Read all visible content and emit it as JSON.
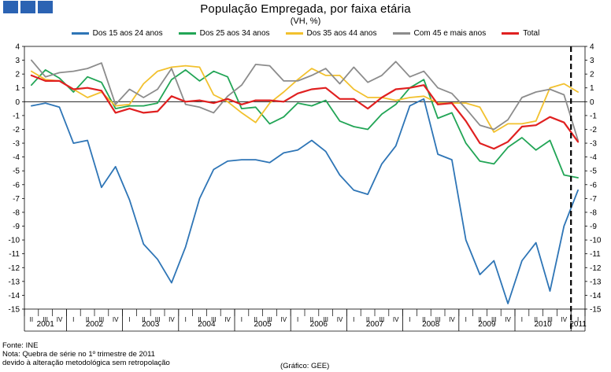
{
  "header": {
    "title": "População Empregada, por faixa etária",
    "subtitle": "(VH, %)"
  },
  "brand": {
    "color": "#2b63b3"
  },
  "chart_data": {
    "type": "line",
    "title": "População Empregada, por faixa etária",
    "ylabel": "(VH, %)",
    "ylim": [
      -15,
      4
    ],
    "yticks": [
      4,
      3,
      2,
      1,
      0,
      -1,
      -2,
      -3,
      -4,
      -5,
      -6,
      -7,
      -8,
      -9,
      -10,
      -11,
      -12,
      -13,
      -14,
      -15
    ],
    "quarter_labels": [
      "II",
      "III",
      "IV",
      "I",
      "II",
      "III",
      "IV",
      "I",
      "II",
      "III",
      "IV",
      "I",
      "II",
      "III",
      "IV",
      "I",
      "II",
      "III",
      "IV",
      "I",
      "II",
      "III",
      "IV",
      "I",
      "II",
      "III",
      "IV",
      "I",
      "II",
      "III",
      "IV",
      "I",
      "II",
      "III",
      "IV",
      "I",
      "II",
      "III",
      "IV",
      "I"
    ],
    "years": [
      {
        "label": "2001",
        "start": 0,
        "end": 3
      },
      {
        "label": "2002",
        "start": 3,
        "end": 7
      },
      {
        "label": "2003",
        "start": 7,
        "end": 11
      },
      {
        "label": "2004",
        "start": 11,
        "end": 15
      },
      {
        "label": "2005",
        "start": 15,
        "end": 19
      },
      {
        "label": "2006",
        "start": 19,
        "end": 23
      },
      {
        "label": "2007",
        "start": 23,
        "end": 27
      },
      {
        "label": "2008",
        "start": 27,
        "end": 31
      },
      {
        "label": "2009",
        "start": 31,
        "end": 35
      },
      {
        "label": "2010",
        "start": 35,
        "end": 39
      },
      {
        "label": "2011",
        "start": 39,
        "end": 40
      }
    ],
    "series_break_after_index": 38.5,
    "series": [
      {
        "name": "Dos 15 aos 24 anos",
        "color": "#2e75b6",
        "values": [
          -0.3,
          -0.1,
          -0.4,
          -3.0,
          -2.8,
          -6.2,
          -4.7,
          -7.1,
          -10.3,
          -11.4,
          -13.1,
          -10.5,
          -7.0,
          -4.9,
          -4.3,
          -4.2,
          -4.2,
          -4.4,
          -3.7,
          -3.5,
          -2.8,
          -3.6,
          -5.3,
          -6.4,
          -6.7,
          -4.5,
          -3.2,
          -0.3,
          0.2,
          -3.8,
          -4.2,
          -10.0,
          -12.5,
          -11.5,
          -14.6,
          -11.5,
          -10.2,
          -13.7,
          -9.0,
          -6.4
        ]
      },
      {
        "name": "Dos 25 aos 34 anos",
        "color": "#22a556",
        "values": [
          1.2,
          2.3,
          1.7,
          0.7,
          1.8,
          1.4,
          -0.5,
          -0.3,
          -0.3,
          -0.1,
          1.6,
          2.3,
          1.5,
          2.2,
          1.8,
          -0.5,
          -0.4,
          -1.6,
          -1.1,
          -0.1,
          -0.3,
          0.1,
          -1.4,
          -1.8,
          -2.0,
          -0.9,
          -0.2,
          1.0,
          1.6,
          -1.2,
          -0.8,
          -3.0,
          -4.3,
          -4.5,
          -3.3,
          -2.6,
          -3.5,
          -2.8,
          -5.3,
          -5.5
        ]
      },
      {
        "name": "Dos 35 aos 44 anos",
        "color": "#f2c12e",
        "values": [
          2.2,
          1.6,
          1.5,
          0.9,
          0.3,
          0.7,
          -0.3,
          -0.2,
          1.3,
          2.2,
          2.5,
          2.6,
          2.5,
          0.5,
          0.0,
          -0.8,
          -1.5,
          -0.1,
          0.7,
          1.6,
          2.4,
          1.9,
          1.9,
          0.9,
          0.3,
          0.3,
          0.1,
          0.3,
          0.4,
          -0.1,
          -0.1,
          -0.1,
          -0.4,
          -2.2,
          -1.6,
          -1.6,
          -1.4,
          1.0,
          1.3,
          0.7
        ]
      },
      {
        "name": "Com 45 e mais anos",
        "color": "#8c8c8c",
        "values": [
          3.0,
          1.8,
          2.1,
          2.2,
          2.4,
          2.8,
          -0.2,
          0.9,
          0.3,
          0.9,
          2.4,
          -0.2,
          -0.4,
          -0.8,
          0.4,
          1.2,
          2.7,
          2.6,
          1.5,
          1.5,
          1.9,
          2.4,
          1.3,
          2.5,
          1.4,
          1.9,
          2.9,
          1.8,
          2.2,
          1.0,
          0.6,
          -0.5,
          -1.7,
          -2.0,
          -1.3,
          0.3,
          0.7,
          0.9,
          0.5,
          -2.8
        ]
      },
      {
        "name": "Total",
        "color": "#e02020",
        "values": [
          1.9,
          1.5,
          1.5,
          0.9,
          1.0,
          0.8,
          -0.8,
          -0.5,
          -0.8,
          -0.7,
          0.4,
          0.0,
          0.1,
          -0.1,
          0.2,
          -0.2,
          0.1,
          0.1,
          0.0,
          0.6,
          0.9,
          1.0,
          0.2,
          0.2,
          -0.5,
          0.3,
          0.9,
          1.0,
          1.2,
          -0.2,
          -0.1,
          -1.4,
          -3.0,
          -3.4,
          -2.9,
          -1.8,
          -1.7,
          -1.1,
          -1.5,
          -2.9
        ]
      }
    ]
  },
  "notes": {
    "source": "Fonte: INE",
    "note_line1": "Nota: Quebra de série no 1º trimestre de 2011",
    "note_line2": "devido à alteração metodológica sem retropolação",
    "credit": "(Gráfico: GEE)"
  }
}
